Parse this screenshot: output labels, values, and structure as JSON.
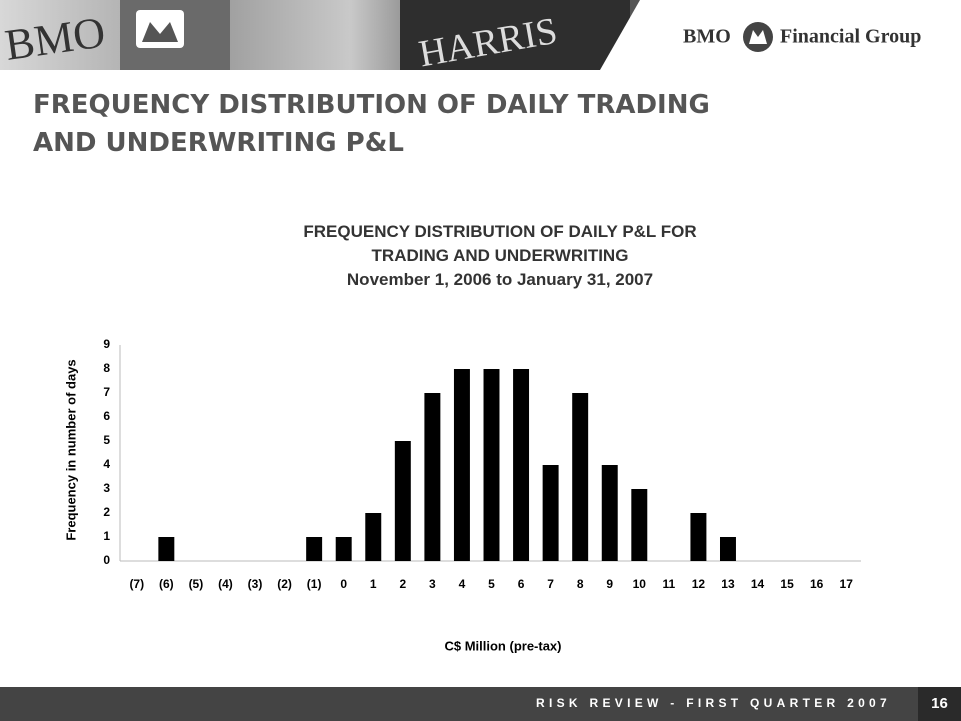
{
  "banner": {
    "photo_texts": [
      "BMO",
      "HARRIS"
    ]
  },
  "logo": {
    "left": "BMO",
    "right": "Financial Group"
  },
  "slide_title": "FREQUENCY DISTRIBUTION OF DAILY TRADING AND UNDERWRITING P&L",
  "chart_data": {
    "type": "bar",
    "title": "FREQUENCY DISTRIBUTION OF DAILY P&L FOR TRADING AND UNDERWRITING",
    "subtitle": "November 1, 2006 to January 31, 2007",
    "x_label": "C$ Million (pre-tax)",
    "y_label": "Frequency in number of days",
    "categories": [
      "(7)",
      "(6)",
      "(5)",
      "(4)",
      "(3)",
      "(2)",
      "(1)",
      "0",
      "1",
      "2",
      "3",
      "4",
      "5",
      "6",
      "7",
      "8",
      "9",
      "10",
      "11",
      "12",
      "13",
      "14",
      "15",
      "16",
      "17"
    ],
    "values": [
      0,
      1,
      0,
      0,
      0,
      0,
      1,
      1,
      2,
      5,
      7,
      8,
      8,
      8,
      4,
      7,
      4,
      3,
      0,
      2,
      1,
      0,
      0,
      0,
      0
    ],
    "color": "#000000",
    "ylim": [
      0,
      9
    ],
    "yticks": [
      0,
      1,
      2,
      3,
      4,
      5,
      6,
      7,
      8,
      9
    ],
    "grid": false
  },
  "footer": {
    "text": "RISK REVIEW - FIRST QUARTER 2007",
    "page": "16"
  }
}
